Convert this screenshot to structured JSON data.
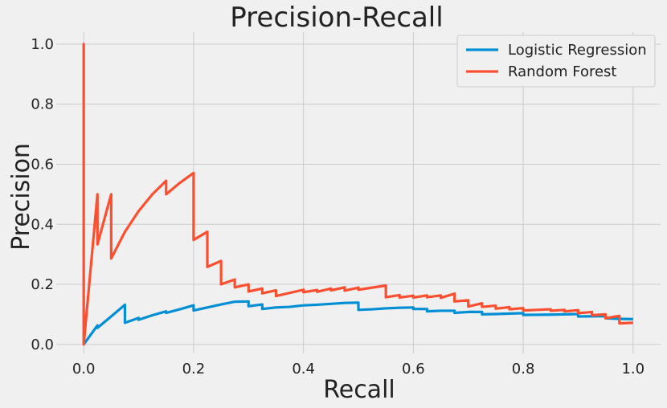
{
  "chart_data": {
    "type": "line",
    "title": "Precision-Recall",
    "xlabel": "Recall",
    "ylabel": "Precision",
    "xlim": [
      -0.05,
      1.05
    ],
    "ylim": [
      -0.03,
      1.04
    ],
    "x_ticks": [
      0.0,
      0.2,
      0.4,
      0.6,
      0.8,
      1.0
    ],
    "y_ticks": [
      0.0,
      0.2,
      0.4,
      0.6,
      0.8,
      1.0
    ],
    "x_tick_labels": [
      "0.0",
      "0.2",
      "0.4",
      "0.6",
      "0.8",
      "1.0"
    ],
    "y_tick_labels": [
      "0.0",
      "0.2",
      "0.4",
      "0.6",
      "0.8",
      "1.0"
    ],
    "grid": true,
    "legend_position": "top-right",
    "colors": {
      "background": "#f0f0f0",
      "grid": "#cbcbcb",
      "text": "#222222"
    },
    "series": [
      {
        "name": "Logistic Regression",
        "color": "#008fd5",
        "x": [
          0.0,
          0.025,
          0.025,
          0.05,
          0.075,
          0.075,
          0.1,
          0.1,
          0.125,
          0.15,
          0.15,
          0.175,
          0.2,
          0.2,
          0.225,
          0.25,
          0.275,
          0.3,
          0.3,
          0.325,
          0.325,
          0.35,
          0.375,
          0.4,
          0.425,
          0.45,
          0.475,
          0.5,
          0.5,
          0.525,
          0.55,
          0.575,
          0.6,
          0.6,
          0.625,
          0.625,
          0.65,
          0.675,
          0.675,
          0.7,
          0.725,
          0.725,
          0.75,
          0.8,
          0.8,
          0.85,
          0.9,
          0.9,
          0.95,
          0.95,
          0.975,
          1.0
        ],
        "y": [
          0.0,
          0.063,
          0.055,
          0.093,
          0.132,
          0.072,
          0.088,
          0.082,
          0.097,
          0.11,
          0.105,
          0.117,
          0.13,
          0.113,
          0.123,
          0.133,
          0.142,
          0.143,
          0.127,
          0.133,
          0.118,
          0.123,
          0.125,
          0.13,
          0.132,
          0.135,
          0.138,
          0.139,
          0.115,
          0.117,
          0.12,
          0.122,
          0.123,
          0.118,
          0.118,
          0.11,
          0.112,
          0.112,
          0.105,
          0.108,
          0.108,
          0.1,
          0.101,
          0.104,
          0.098,
          0.099,
          0.101,
          0.093,
          0.094,
          0.087,
          0.085,
          0.084
        ]
      },
      {
        "name": "Random Forest",
        "color": "#fc4f30",
        "x": [
          0.0,
          0.0,
          0.0,
          0.025,
          0.025,
          0.05,
          0.05,
          0.075,
          0.1,
          0.125,
          0.15,
          0.15,
          0.175,
          0.2,
          0.2,
          0.225,
          0.225,
          0.25,
          0.25,
          0.275,
          0.275,
          0.3,
          0.3,
          0.325,
          0.325,
          0.35,
          0.35,
          0.4,
          0.4,
          0.425,
          0.425,
          0.45,
          0.45,
          0.475,
          0.475,
          0.5,
          0.5,
          0.55,
          0.55,
          0.575,
          0.575,
          0.6,
          0.6,
          0.625,
          0.625,
          0.65,
          0.65,
          0.675,
          0.675,
          0.7,
          0.7,
          0.725,
          0.725,
          0.75,
          0.75,
          0.775,
          0.775,
          0.8,
          0.8,
          0.85,
          0.85,
          0.875,
          0.875,
          0.9,
          0.9,
          0.925,
          0.925,
          0.95,
          0.95,
          0.975,
          0.975,
          1.0
        ],
        "y": [
          0.0,
          1.0,
          0.0,
          0.5,
          0.333,
          0.5,
          0.286,
          0.375,
          0.444,
          0.5,
          0.545,
          0.5,
          0.538,
          0.571,
          0.348,
          0.375,
          0.258,
          0.278,
          0.2,
          0.216,
          0.19,
          0.2,
          0.176,
          0.186,
          0.17,
          0.18,
          0.161,
          0.182,
          0.174,
          0.181,
          0.175,
          0.186,
          0.18,
          0.19,
          0.179,
          0.189,
          0.182,
          0.196,
          0.157,
          0.164,
          0.156,
          0.162,
          0.156,
          0.163,
          0.157,
          0.163,
          0.155,
          0.169,
          0.143,
          0.147,
          0.126,
          0.137,
          0.125,
          0.129,
          0.119,
          0.124,
          0.117,
          0.121,
          0.113,
          0.117,
          0.112,
          0.115,
          0.11,
          0.114,
          0.104,
          0.108,
          0.097,
          0.1,
          0.087,
          0.095,
          0.07,
          0.072
        ]
      }
    ]
  }
}
